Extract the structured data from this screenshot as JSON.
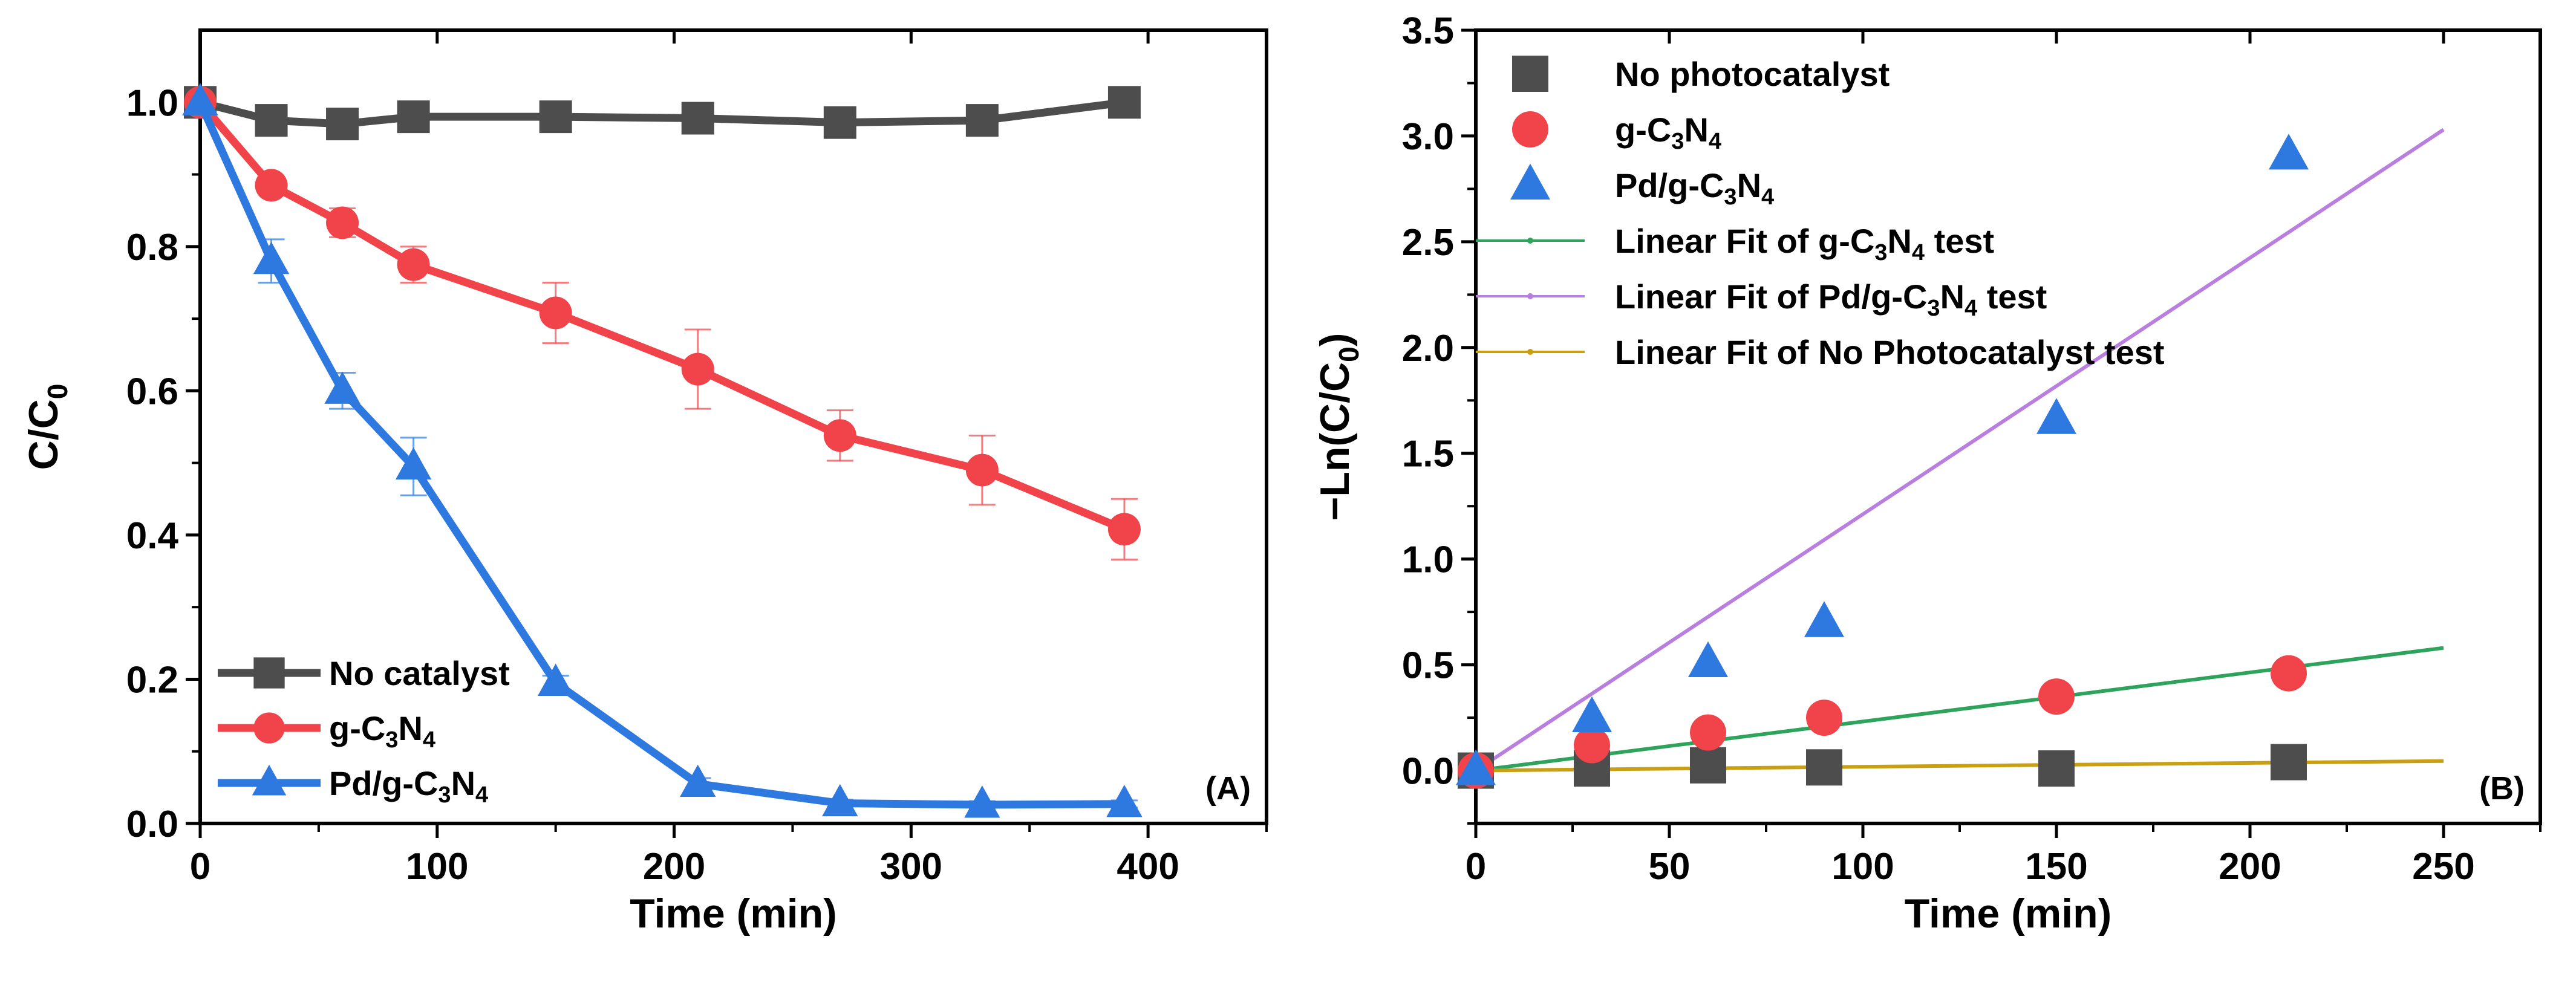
{
  "chart_data": [
    {
      "type": "line",
      "panel_label": "(A)",
      "xlabel": "Time (min)",
      "ylabel": {
        "main": "C/C",
        "sub": "0"
      },
      "xlim": [
        0,
        450
      ],
      "ylim": [
        0,
        1.1
      ],
      "x_ticks": [
        0,
        100,
        200,
        300,
        400
      ],
      "x_tick_labels": [
        "0",
        "100",
        "200",
        "300",
        "400"
      ],
      "y_ticks": [
        0,
        0.2,
        0.4,
        0.6,
        0.8,
        1.0
      ],
      "y_tick_labels": [
        "0.0",
        "0.2",
        "0.4",
        "0.6",
        "0.8",
        "1.0"
      ],
      "legend_position": "bottom-left",
      "series": [
        {
          "name": "No catalyst",
          "label_parts": [
            [
              "No catalyst",
              ""
            ]
          ],
          "marker": "square",
          "color": "#4d4d4d",
          "x": [
            0,
            30,
            60,
            90,
            150,
            210,
            270,
            330,
            390
          ],
          "values": [
            1.0,
            0.975,
            0.97,
            0.98,
            0.98,
            0.978,
            0.972,
            0.975,
            1.0
          ]
        },
        {
          "name": "g-C3N4",
          "label_parts": [
            [
              "g-C",
              ""
            ],
            [
              "3",
              "sub"
            ],
            [
              "N",
              ""
            ],
            [
              "4",
              "sub"
            ]
          ],
          "marker": "circle",
          "color": "#f0444a",
          "x": [
            0,
            30,
            60,
            90,
            150,
            210,
            270,
            330,
            390
          ],
          "values": [
            1.0,
            0.885,
            0.833,
            0.775,
            0.708,
            0.63,
            0.538,
            0.49,
            0.408
          ],
          "errors": [
            0,
            0.01,
            0.02,
            0.025,
            0.042,
            0.055,
            0.035,
            0.048,
            0.042
          ]
        },
        {
          "name": "Pd/g-C3N4",
          "label_parts": [
            [
              "Pd/g-C",
              ""
            ],
            [
              "3",
              "sub"
            ],
            [
              "N",
              ""
            ],
            [
              "4",
              "sub"
            ]
          ],
          "marker": "triangle",
          "color": "#2e79e0",
          "x": [
            0,
            30,
            60,
            90,
            150,
            210,
            270,
            330,
            390
          ],
          "values": [
            1.0,
            0.78,
            0.6,
            0.495,
            0.195,
            0.055,
            0.028,
            0.026,
            0.027
          ],
          "errors": [
            0,
            0.03,
            0.025,
            0.04,
            0.01,
            0.008,
            0.005,
            0.005,
            0.005
          ]
        }
      ]
    },
    {
      "type": "scatter",
      "panel_label": "(B)",
      "xlabel": "Time (min)",
      "ylabel": {
        "main": "−Ln(C/C",
        "sub": "0",
        "close": ")"
      },
      "xlim": [
        0,
        275
      ],
      "ylim": [
        -0.25,
        3.5
      ],
      "x_ticks": [
        0,
        50,
        100,
        150,
        200,
        250
      ],
      "x_tick_labels": [
        "0",
        "50",
        "100",
        "150",
        "200",
        "250"
      ],
      "y_ticks": [
        0,
        0.5,
        1.0,
        1.5,
        2.0,
        2.5,
        3.0,
        3.5
      ],
      "y_tick_labels": [
        "0.0",
        "0.5",
        "1.0",
        "1.5",
        "2.0",
        "2.5",
        "3.0",
        "3.5"
      ],
      "legend_position": "top-left",
      "series": [
        {
          "name": "No photocatalyst",
          "label_parts": [
            [
              "No photocatalyst",
              ""
            ]
          ],
          "marker": "square",
          "color": "#4d4d4d",
          "x": [
            0,
            30,
            60,
            90,
            150,
            210
          ],
          "values": [
            0.0,
            0.01,
            0.025,
            0.015,
            0.01,
            0.04
          ]
        },
        {
          "name": "g-C3N4",
          "label_parts": [
            [
              "g-C",
              ""
            ],
            [
              "3",
              "sub"
            ],
            [
              "N",
              ""
            ],
            [
              "4",
              "sub"
            ]
          ],
          "marker": "circle",
          "color": "#f0444a",
          "x": [
            0,
            30,
            60,
            90,
            150,
            210
          ],
          "values": [
            0.0,
            0.12,
            0.18,
            0.25,
            0.35,
            0.46
          ]
        },
        {
          "name": "Pd/g-C3N4",
          "label_parts": [
            [
              "Pd/g-C",
              ""
            ],
            [
              "3",
              "sub"
            ],
            [
              "N",
              ""
            ],
            [
              "4",
              "sub"
            ]
          ],
          "marker": "triangle",
          "color": "#2e79e0",
          "x": [
            0,
            30,
            60,
            90,
            150,
            210
          ],
          "values": [
            0.0,
            0.25,
            0.51,
            0.7,
            1.66,
            2.91
          ]
        }
      ],
      "fits": [
        {
          "name": "Linear Fit of g-C3N4 test",
          "label_parts": [
            [
              "Linear Fit of g-C",
              ""
            ],
            [
              "3",
              "sub"
            ],
            [
              "N",
              ""
            ],
            [
              "4",
              "sub"
            ],
            [
              "  test",
              ""
            ]
          ],
          "color": "#2ea35c",
          "x": [
            0,
            250
          ],
          "values": [
            0.0,
            0.58
          ]
        },
        {
          "name": "Linear Fit of Pd/g-C3N4 test",
          "label_parts": [
            [
              "Linear Fit of Pd/g-C",
              ""
            ],
            [
              "3",
              "sub"
            ],
            [
              "N",
              ""
            ],
            [
              "4",
              "sub"
            ],
            [
              " test",
              ""
            ]
          ],
          "color": "#b87ee0",
          "x": [
            0,
            250
          ],
          "values": [
            0.0,
            3.03
          ]
        },
        {
          "name": "Linear Fit of No Photocatalyst test",
          "label_parts": [
            [
              "Linear Fit of No Photocatalyst test",
              ""
            ]
          ],
          "color": "#c9a013",
          "x": [
            0,
            250
          ],
          "values": [
            0.0,
            0.045
          ]
        }
      ]
    }
  ]
}
